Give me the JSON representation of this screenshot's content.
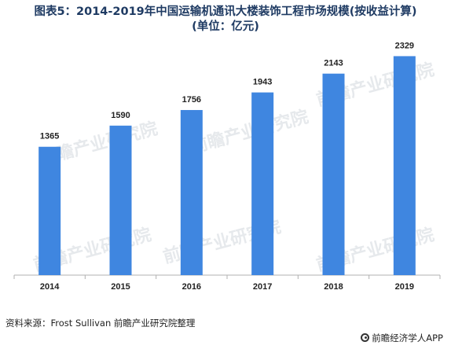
{
  "title_line1": "图表5：2014-2019年中国运输机通讯大楼装饰工程市场规模(按收益计算)",
  "title_line2": "(单位：亿元)",
  "watermark_text": "前瞻产业研究院",
  "source_text": "资料来源：Frost Sullivan   前瞻产业研究院整理",
  "brand_text": "前瞻经济学人APP",
  "chart_data": {
    "type": "bar",
    "title": "图表5：2014-2019年中国运输机通讯大楼装饰工程市场规模(按收益计算)(单位：亿元)",
    "xlabel": "",
    "ylabel": "",
    "categories": [
      "2014",
      "2015",
      "2016",
      "2017",
      "2018",
      "2019"
    ],
    "values": [
      1365,
      1590,
      1756,
      1943,
      2143,
      2329
    ],
    "ylim": [
      0,
      2550
    ],
    "grid": false,
    "legend": "none",
    "bar_color": "#3f86e0",
    "axis_color": "#b0b0b0"
  }
}
